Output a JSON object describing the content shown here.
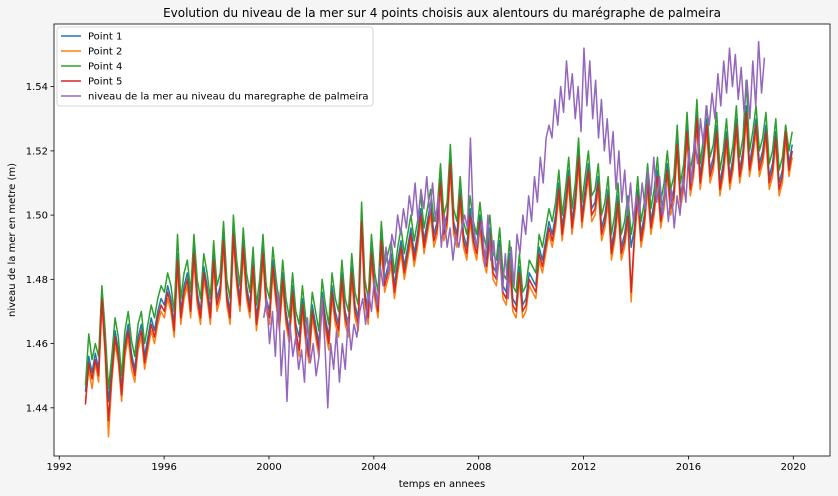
{
  "chart_data": {
    "type": "line",
    "title": "Evolution du niveau de la mer sur 4 points choisis aux alentours du marégraphe de palmeira",
    "xlabel": "temps en annees",
    "ylabel": "niveau de la mer en metre (m)",
    "xlim": [
      1991.8,
      2021.4
    ],
    "ylim": [
      1.425,
      1.5595
    ],
    "xticks": [
      1992,
      1996,
      2000,
      2004,
      2008,
      2012,
      2016,
      2020
    ],
    "xtick_labels": [
      "1992",
      "1996",
      "2000",
      "2004",
      "2008",
      "2012",
      "2016",
      "2020"
    ],
    "yticks": [
      1.44,
      1.46,
      1.48,
      1.5,
      1.52,
      1.54
    ],
    "ytick_labels": [
      "1.44",
      "1.46",
      "1.48",
      "1.50",
      "1.52",
      "1.54"
    ],
    "grid": false,
    "legend_position": "top-left",
    "series": [
      {
        "name": "Point 1",
        "color": "#1f77b4",
        "x_start": 1993.0,
        "x_end": 2019.96,
        "values": [
          1.445,
          1.456,
          1.451,
          1.457,
          1.452,
          1.476,
          1.46,
          1.442,
          1.452,
          1.464,
          1.458,
          1.446,
          1.46,
          1.466,
          1.457,
          1.452,
          1.462,
          1.466,
          1.456,
          1.462,
          1.468,
          1.464,
          1.47,
          1.474,
          1.472,
          1.478,
          1.474,
          1.466,
          1.488,
          1.47,
          1.478,
          1.482,
          1.472,
          1.49,
          1.476,
          1.47,
          1.484,
          1.478,
          1.47,
          1.488,
          1.474,
          1.478,
          1.494,
          1.476,
          1.47,
          1.496,
          1.482,
          1.474,
          1.492,
          1.478,
          1.472,
          1.486,
          1.468,
          1.476,
          1.49,
          1.474,
          1.47,
          1.486,
          1.476,
          1.468,
          1.482,
          1.47,
          1.464,
          1.478,
          1.466,
          1.462,
          1.474,
          1.464,
          1.458,
          1.472,
          1.466,
          1.46,
          1.476,
          1.468,
          1.462,
          1.478,
          1.47,
          1.466,
          1.482,
          1.47,
          1.466,
          1.484,
          1.472,
          1.468,
          1.5,
          1.476,
          1.47,
          1.49,
          1.478,
          1.472,
          1.494,
          1.48,
          1.484,
          1.488,
          1.478,
          1.486,
          1.492,
          1.484,
          1.49,
          1.496,
          1.488,
          1.494,
          1.502,
          1.492,
          1.498,
          1.504,
          1.494,
          1.498,
          1.512,
          1.496,
          1.5,
          1.518,
          1.498,
          1.494,
          1.508,
          1.494,
          1.49,
          1.502,
          1.494,
          1.49,
          1.5,
          1.49,
          1.486,
          1.496,
          1.484,
          1.482,
          1.492,
          1.478,
          1.476,
          1.488,
          1.474,
          1.472,
          1.484,
          1.472,
          1.474,
          1.482,
          1.48,
          1.478,
          1.49,
          1.486,
          1.492,
          1.498,
          1.494,
          1.5,
          1.51,
          1.496,
          1.504,
          1.514,
          1.498,
          1.506,
          1.52,
          1.5,
          1.508,
          1.516,
          1.502,
          1.504,
          1.512,
          1.496,
          1.5,
          1.508,
          1.49,
          1.496,
          1.506,
          1.49,
          1.494,
          1.502,
          1.49,
          1.496,
          1.508,
          1.494,
          1.5,
          1.512,
          1.498,
          1.504,
          1.514,
          1.5,
          1.506,
          1.516,
          1.504,
          1.508,
          1.524,
          1.506,
          1.512,
          1.528,
          1.51,
          1.516,
          1.532,
          1.512,
          1.52,
          1.53,
          1.514,
          1.518,
          1.528,
          1.51,
          1.516,
          1.526,
          1.512,
          1.518,
          1.53,
          1.514,
          1.52,
          1.534,
          1.516,
          1.522,
          1.53,
          1.516,
          1.52,
          1.528,
          1.512,
          1.516,
          1.526,
          1.51,
          1.514,
          1.528,
          1.516,
          1.522
        ]
      },
      {
        "name": "Point 2",
        "color": "#ff7f0e",
        "x_start": 1993.0,
        "x_end": 2019.96,
        "values": [
          1.442,
          1.452,
          1.446,
          1.454,
          1.448,
          1.472,
          1.456,
          1.431,
          1.448,
          1.46,
          1.454,
          1.442,
          1.456,
          1.462,
          1.452,
          1.448,
          1.458,
          1.462,
          1.452,
          1.458,
          1.464,
          1.46,
          1.466,
          1.47,
          1.468,
          1.474,
          1.47,
          1.462,
          1.484,
          1.466,
          1.474,
          1.478,
          1.468,
          1.486,
          1.472,
          1.466,
          1.48,
          1.474,
          1.466,
          1.484,
          1.47,
          1.474,
          1.49,
          1.472,
          1.466,
          1.492,
          1.478,
          1.47,
          1.488,
          1.474,
          1.468,
          1.482,
          1.464,
          1.472,
          1.486,
          1.47,
          1.466,
          1.482,
          1.472,
          1.464,
          1.478,
          1.466,
          1.46,
          1.474,
          1.462,
          1.456,
          1.47,
          1.46,
          1.454,
          1.468,
          1.462,
          1.456,
          1.472,
          1.464,
          1.458,
          1.474,
          1.466,
          1.462,
          1.478,
          1.466,
          1.462,
          1.48,
          1.468,
          1.464,
          1.496,
          1.472,
          1.466,
          1.486,
          1.474,
          1.468,
          1.49,
          1.476,
          1.48,
          1.484,
          1.474,
          1.482,
          1.488,
          1.48,
          1.486,
          1.492,
          1.484,
          1.49,
          1.498,
          1.488,
          1.494,
          1.5,
          1.49,
          1.494,
          1.508,
          1.492,
          1.496,
          1.514,
          1.494,
          1.49,
          1.504,
          1.49,
          1.486,
          1.498,
          1.49,
          1.486,
          1.496,
          1.486,
          1.482,
          1.492,
          1.48,
          1.478,
          1.488,
          1.474,
          1.472,
          1.484,
          1.47,
          1.468,
          1.48,
          1.468,
          1.47,
          1.478,
          1.476,
          1.474,
          1.486,
          1.482,
          1.488,
          1.494,
          1.49,
          1.496,
          1.506,
          1.492,
          1.5,
          1.51,
          1.494,
          1.502,
          1.516,
          1.496,
          1.504,
          1.512,
          1.498,
          1.5,
          1.508,
          1.492,
          1.496,
          1.504,
          1.486,
          1.492,
          1.502,
          1.486,
          1.49,
          1.498,
          1.473,
          1.492,
          1.504,
          1.49,
          1.496,
          1.508,
          1.494,
          1.5,
          1.51,
          1.496,
          1.502,
          1.512,
          1.5,
          1.504,
          1.52,
          1.502,
          1.508,
          1.524,
          1.506,
          1.512,
          1.528,
          1.508,
          1.516,
          1.526,
          1.51,
          1.514,
          1.524,
          1.506,
          1.512,
          1.522,
          1.508,
          1.514,
          1.526,
          1.51,
          1.516,
          1.53,
          1.512,
          1.518,
          1.526,
          1.512,
          1.516,
          1.524,
          1.508,
          1.512,
          1.522,
          1.506,
          1.51,
          1.524,
          1.512,
          1.518
        ]
      },
      {
        "name": "Point 4",
        "color": "#2ca02c",
        "x_start": 1993.0,
        "x_end": 2019.96,
        "values": [
          1.447,
          1.463,
          1.455,
          1.46,
          1.456,
          1.478,
          1.464,
          1.446,
          1.456,
          1.468,
          1.462,
          1.45,
          1.464,
          1.47,
          1.461,
          1.456,
          1.466,
          1.47,
          1.46,
          1.466,
          1.472,
          1.468,
          1.474,
          1.478,
          1.476,
          1.482,
          1.478,
          1.47,
          1.494,
          1.474,
          1.482,
          1.486,
          1.476,
          1.494,
          1.48,
          1.474,
          1.488,
          1.482,
          1.474,
          1.492,
          1.478,
          1.482,
          1.498,
          1.48,
          1.474,
          1.5,
          1.486,
          1.478,
          1.496,
          1.482,
          1.476,
          1.49,
          1.472,
          1.48,
          1.494,
          1.478,
          1.474,
          1.49,
          1.48,
          1.472,
          1.486,
          1.474,
          1.468,
          1.482,
          1.47,
          1.466,
          1.478,
          1.468,
          1.462,
          1.476,
          1.47,
          1.464,
          1.48,
          1.472,
          1.466,
          1.482,
          1.474,
          1.47,
          1.486,
          1.474,
          1.47,
          1.488,
          1.476,
          1.472,
          1.504,
          1.48,
          1.474,
          1.494,
          1.482,
          1.476,
          1.498,
          1.484,
          1.488,
          1.492,
          1.482,
          1.49,
          1.496,
          1.488,
          1.494,
          1.5,
          1.492,
          1.498,
          1.506,
          1.496,
          1.502,
          1.508,
          1.498,
          1.502,
          1.516,
          1.5,
          1.504,
          1.522,
          1.502,
          1.498,
          1.512,
          1.498,
          1.494,
          1.506,
          1.498,
          1.494,
          1.504,
          1.494,
          1.49,
          1.5,
          1.488,
          1.486,
          1.496,
          1.482,
          1.48,
          1.492,
          1.478,
          1.476,
          1.488,
          1.476,
          1.478,
          1.486,
          1.484,
          1.482,
          1.494,
          1.49,
          1.496,
          1.502,
          1.498,
          1.504,
          1.514,
          1.5,
          1.508,
          1.518,
          1.502,
          1.51,
          1.524,
          1.504,
          1.512,
          1.52,
          1.506,
          1.508,
          1.516,
          1.5,
          1.504,
          1.512,
          1.494,
          1.5,
          1.51,
          1.494,
          1.498,
          1.506,
          1.494,
          1.5,
          1.512,
          1.498,
          1.504,
          1.516,
          1.502,
          1.508,
          1.518,
          1.504,
          1.51,
          1.52,
          1.508,
          1.512,
          1.528,
          1.51,
          1.516,
          1.532,
          1.514,
          1.52,
          1.536,
          1.516,
          1.524,
          1.534,
          1.518,
          1.522,
          1.532,
          1.514,
          1.52,
          1.53,
          1.516,
          1.522,
          1.534,
          1.518,
          1.524,
          1.542,
          1.52,
          1.526,
          1.534,
          1.52,
          1.524,
          1.532,
          1.516,
          1.52,
          1.53,
          1.514,
          1.518,
          1.528,
          1.52,
          1.526
        ]
      },
      {
        "name": "Point 5",
        "color": "#d62728",
        "x_start": 1993.0,
        "x_end": 2019.96,
        "values": [
          1.441,
          1.454,
          1.449,
          1.455,
          1.45,
          1.474,
          1.458,
          1.436,
          1.45,
          1.462,
          1.456,
          1.444,
          1.458,
          1.464,
          1.455,
          1.45,
          1.46,
          1.464,
          1.454,
          1.46,
          1.466,
          1.462,
          1.468,
          1.472,
          1.47,
          1.476,
          1.472,
          1.464,
          1.486,
          1.468,
          1.476,
          1.48,
          1.47,
          1.488,
          1.474,
          1.468,
          1.482,
          1.476,
          1.468,
          1.486,
          1.472,
          1.476,
          1.492,
          1.474,
          1.468,
          1.494,
          1.48,
          1.472,
          1.49,
          1.476,
          1.47,
          1.484,
          1.466,
          1.474,
          1.488,
          1.472,
          1.468,
          1.484,
          1.474,
          1.466,
          1.48,
          1.468,
          1.462,
          1.476,
          1.464,
          1.458,
          1.472,
          1.462,
          1.456,
          1.47,
          1.464,
          1.458,
          1.474,
          1.466,
          1.46,
          1.476,
          1.468,
          1.464,
          1.48,
          1.468,
          1.464,
          1.482,
          1.47,
          1.466,
          1.498,
          1.474,
          1.468,
          1.488,
          1.476,
          1.47,
          1.492,
          1.478,
          1.482,
          1.486,
          1.476,
          1.484,
          1.49,
          1.482,
          1.488,
          1.494,
          1.486,
          1.492,
          1.5,
          1.49,
          1.496,
          1.502,
          1.492,
          1.496,
          1.51,
          1.494,
          1.498,
          1.516,
          1.496,
          1.492,
          1.506,
          1.492,
          1.488,
          1.5,
          1.492,
          1.488,
          1.498,
          1.488,
          1.484,
          1.494,
          1.482,
          1.48,
          1.49,
          1.476,
          1.474,
          1.486,
          1.472,
          1.47,
          1.482,
          1.47,
          1.472,
          1.48,
          1.478,
          1.476,
          1.488,
          1.484,
          1.49,
          1.496,
          1.492,
          1.498,
          1.508,
          1.494,
          1.502,
          1.512,
          1.496,
          1.504,
          1.518,
          1.498,
          1.506,
          1.514,
          1.5,
          1.502,
          1.51,
          1.494,
          1.498,
          1.506,
          1.488,
          1.494,
          1.504,
          1.488,
          1.492,
          1.5,
          1.476,
          1.494,
          1.506,
          1.492,
          1.498,
          1.51,
          1.496,
          1.502,
          1.512,
          1.498,
          1.504,
          1.514,
          1.502,
          1.506,
          1.522,
          1.504,
          1.51,
          1.526,
          1.508,
          1.514,
          1.53,
          1.51,
          1.518,
          1.528,
          1.512,
          1.516,
          1.526,
          1.508,
          1.514,
          1.524,
          1.51,
          1.516,
          1.528,
          1.512,
          1.518,
          1.532,
          1.514,
          1.52,
          1.528,
          1.514,
          1.518,
          1.526,
          1.51,
          1.514,
          1.524,
          1.508,
          1.512,
          1.526,
          1.514,
          1.52
        ]
      },
      {
        "name": "niveau de la mer au niveau du maregraphe de palmeira",
        "color": "#9467bd",
        "x_start": 1999.8,
        "x_end": 2018.9,
        "values": [
          1.468,
          1.474,
          1.46,
          1.47,
          1.456,
          1.476,
          1.45,
          1.464,
          1.442,
          1.466,
          1.456,
          1.462,
          1.452,
          1.458,
          1.448,
          1.468,
          1.454,
          1.46,
          1.45,
          1.456,
          1.474,
          1.46,
          1.44,
          1.46,
          1.452,
          1.464,
          1.448,
          1.46,
          1.452,
          1.468,
          1.458,
          1.466,
          1.462,
          1.47,
          1.474,
          1.466,
          1.476,
          1.47,
          1.48,
          1.472,
          1.484,
          1.478,
          1.49,
          1.482,
          1.494,
          1.49,
          1.5,
          1.494,
          1.502,
          1.496,
          1.506,
          1.5,
          1.51,
          1.498,
          1.508,
          1.502,
          1.512,
          1.5,
          1.51,
          1.498,
          1.506,
          1.49,
          1.5,
          1.49,
          1.496,
          1.486,
          1.494,
          1.49,
          1.496,
          1.5,
          1.496,
          1.524,
          1.498,
          1.49,
          1.494,
          1.498,
          1.484,
          1.5,
          1.486,
          1.492,
          1.48,
          1.49,
          1.476,
          1.488,
          1.474,
          1.49,
          1.478,
          1.494,
          1.488,
          1.5,
          1.494,
          1.506,
          1.498,
          1.512,
          1.504,
          1.518,
          1.51,
          1.524,
          1.528,
          1.524,
          1.536,
          1.528,
          1.54,
          1.532,
          1.548,
          1.536,
          1.544,
          1.53,
          1.54,
          1.526,
          1.552,
          1.534,
          1.548,
          1.53,
          1.542,
          1.524,
          1.536,
          1.52,
          1.53,
          1.516,
          1.526,
          1.508,
          1.52,
          1.504,
          1.514,
          1.5,
          1.51,
          1.498,
          1.506,
          1.5,
          1.51,
          1.502,
          1.514,
          1.506,
          1.518,
          1.504,
          1.512,
          1.5,
          1.51,
          1.498,
          1.508,
          1.496,
          1.506,
          1.5,
          1.512,
          1.504,
          1.52,
          1.51,
          1.524,
          1.516,
          1.53,
          1.522,
          1.534,
          1.528,
          1.538,
          1.53,
          1.544,
          1.534,
          1.548,
          1.538,
          1.552,
          1.54,
          1.55,
          1.536,
          1.546,
          1.532,
          1.542,
          1.53,
          1.548,
          1.534,
          1.554,
          1.538,
          1.549
        ]
      }
    ]
  }
}
